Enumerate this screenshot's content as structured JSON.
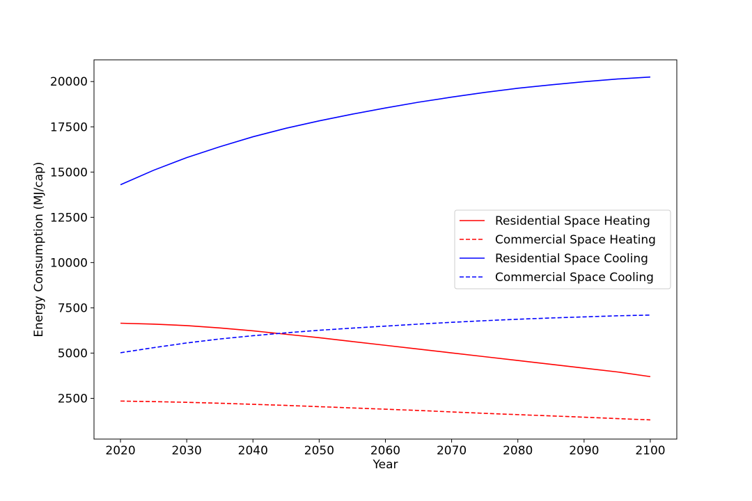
{
  "chart_data": {
    "type": "line",
    "xlabel": "Year",
    "ylabel": "Energy Consumption (MJ/cap)",
    "xlim": [
      2016,
      2104
    ],
    "ylim": [
      250,
      21200
    ],
    "xticks": [
      2020,
      2030,
      2040,
      2050,
      2060,
      2070,
      2080,
      2090,
      2100
    ],
    "yticks": [
      2500,
      5000,
      7500,
      10000,
      12500,
      15000,
      17500,
      20000
    ],
    "grid": false,
    "legend_position": "center-right",
    "x": [
      2020,
      2025,
      2030,
      2035,
      2040,
      2045,
      2050,
      2055,
      2060,
      2065,
      2070,
      2075,
      2080,
      2085,
      2090,
      2095,
      2100
    ],
    "series": [
      {
        "name": "Residential Space Heating",
        "color": "#ff0000",
        "style": "solid",
        "values": [
          6650,
          6600,
          6520,
          6390,
          6230,
          6040,
          5850,
          5640,
          5430,
          5220,
          5010,
          4800,
          4590,
          4380,
          4170,
          3960,
          3700
        ]
      },
      {
        "name": "Commercial Space Heating",
        "color": "#ff0000",
        "style": "dashed",
        "values": [
          2350,
          2320,
          2280,
          2230,
          2170,
          2110,
          2040,
          1970,
          1900,
          1830,
          1750,
          1670,
          1600,
          1530,
          1460,
          1380,
          1310
        ]
      },
      {
        "name": "Residential Space Cooling",
        "color": "#0000ff",
        "style": "solid",
        "values": [
          14300,
          15100,
          15800,
          16400,
          16950,
          17420,
          17830,
          18200,
          18540,
          18860,
          19140,
          19400,
          19630,
          19820,
          19990,
          20140,
          20250
        ]
      },
      {
        "name": "Commercial Space Cooling",
        "color": "#0000ff",
        "style": "dashed",
        "values": [
          5020,
          5300,
          5560,
          5780,
          5960,
          6120,
          6260,
          6380,
          6490,
          6600,
          6700,
          6790,
          6870,
          6940,
          7000,
          7060,
          7100
        ]
      }
    ]
  }
}
